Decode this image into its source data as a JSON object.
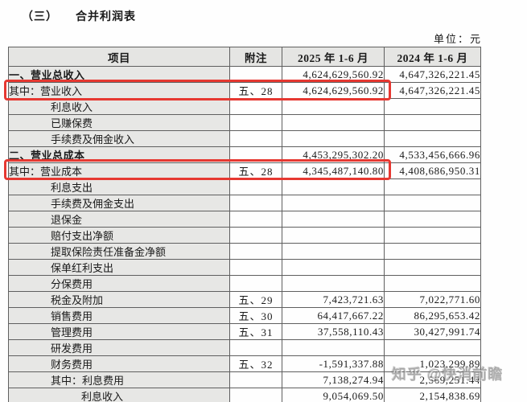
{
  "page": {
    "title_prefix": "（三）",
    "title_text": "合并利润表",
    "unit_label": "单位：元"
  },
  "colors": {
    "highlight_red": "#e63831",
    "header_bg": "#e5e5e3",
    "label_col_bg": "#e7e7e5",
    "border": "#5f5f5f",
    "watermark_gray": "#808080"
  },
  "watermark": {
    "text": "知乎 @快消前瞻"
  },
  "table": {
    "columns": [
      "项目",
      "附注",
      "2025 年 1-6 月",
      "2024 年 1-6 月"
    ],
    "rows": [
      {
        "label": "一、营业总收入",
        "note": "",
        "v2025": "4,624,629,560.92",
        "v2024": "4,647,326,221.45",
        "indent": 0,
        "bold": true,
        "highlight": false
      },
      {
        "label": "其中：营业收入",
        "note": "五、28",
        "v2025": "4,624,629,560.92",
        "v2024": "4,647,326,221.45",
        "indent": 0,
        "bold": false,
        "highlight": true
      },
      {
        "label": "利息收入",
        "note": "",
        "v2025": "",
        "v2024": "",
        "indent": 1,
        "bold": false,
        "highlight": false
      },
      {
        "label": "已赚保费",
        "note": "",
        "v2025": "",
        "v2024": "",
        "indent": 1,
        "bold": false,
        "highlight": false
      },
      {
        "label": "手续费及佣金收入",
        "note": "",
        "v2025": "",
        "v2024": "",
        "indent": 1,
        "bold": false,
        "highlight": false
      },
      {
        "label": "二、营业总成本",
        "note": "",
        "v2025": "4,453,295,302.20",
        "v2024": "4,533,456,666.96",
        "indent": 0,
        "bold": true,
        "highlight": false
      },
      {
        "label": "其中：营业成本",
        "note": "五、28",
        "v2025": "4,345,487,140.80",
        "v2024": "4,408,686,950.31",
        "indent": 0,
        "bold": false,
        "highlight": true
      },
      {
        "label": "利息支出",
        "note": "",
        "v2025": "",
        "v2024": "",
        "indent": 1,
        "bold": false,
        "highlight": false
      },
      {
        "label": "手续费及佣金支出",
        "note": "",
        "v2025": "",
        "v2024": "",
        "indent": 1,
        "bold": false,
        "highlight": false
      },
      {
        "label": "退保金",
        "note": "",
        "v2025": "",
        "v2024": "",
        "indent": 1,
        "bold": false,
        "highlight": false
      },
      {
        "label": "赔付支出净额",
        "note": "",
        "v2025": "",
        "v2024": "",
        "indent": 1,
        "bold": false,
        "highlight": false
      },
      {
        "label": "提取保险责任准备金净额",
        "note": "",
        "v2025": "",
        "v2024": "",
        "indent": 1,
        "bold": false,
        "highlight": false
      },
      {
        "label": "保单红利支出",
        "note": "",
        "v2025": "",
        "v2024": "",
        "indent": 1,
        "bold": false,
        "highlight": false
      },
      {
        "label": "分保费用",
        "note": "",
        "v2025": "",
        "v2024": "",
        "indent": 1,
        "bold": false,
        "highlight": false
      },
      {
        "label": "税金及附加",
        "note": "五、29",
        "v2025": "7,423,721.63",
        "v2024": "7,022,771.60",
        "indent": 1,
        "bold": false,
        "highlight": false
      },
      {
        "label": "销售费用",
        "note": "五、30",
        "v2025": "64,417,667.22",
        "v2024": "86,295,653.42",
        "indent": 1,
        "bold": false,
        "highlight": false
      },
      {
        "label": "管理费用",
        "note": "五、31",
        "v2025": "37,558,110.43",
        "v2024": "30,427,991.74",
        "indent": 1,
        "bold": false,
        "highlight": false
      },
      {
        "label": "研发费用",
        "note": "",
        "v2025": "",
        "v2024": "",
        "indent": 1,
        "bold": false,
        "highlight": false
      },
      {
        "label": "财务费用",
        "note": "五、32",
        "v2025": "-1,591,337.88",
        "v2024": "1,023,299.89",
        "indent": 1,
        "bold": false,
        "highlight": false
      },
      {
        "label": "其中：利息费用",
        "note": "",
        "v2025": "7,138,274.94",
        "v2024": "2,569,251.44",
        "indent": 1,
        "bold": false,
        "highlight": false
      },
      {
        "label": "利息收入",
        "note": "",
        "v2025": "9,054,069.50",
        "v2024": "2,154,838.69",
        "indent": 2,
        "bold": false,
        "highlight": false
      }
    ]
  }
}
